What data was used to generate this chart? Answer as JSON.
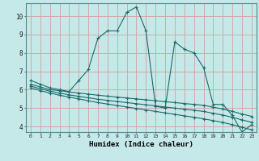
{
  "xlabel": "Humidex (Indice chaleur)",
  "bg_color": "#c5e8e8",
  "grid_color": "#d4a0a0",
  "line_color": "#1a6b6b",
  "axis_color": "#4a8a8a",
  "xlim": [
    -0.5,
    23.5
  ],
  "ylim": [
    3.7,
    10.7
  ],
  "yticks": [
    4,
    5,
    6,
    7,
    8,
    9,
    10
  ],
  "xticks": [
    0,
    1,
    2,
    3,
    4,
    5,
    6,
    7,
    8,
    9,
    10,
    11,
    12,
    13,
    14,
    15,
    16,
    17,
    18,
    19,
    20,
    21,
    22,
    23
  ],
  "series1_x": [
    0,
    1,
    2,
    3,
    4,
    5,
    6,
    7,
    8,
    9,
    10,
    11,
    12,
    13,
    14,
    15,
    16,
    17,
    18,
    19,
    20,
    21,
    22,
    23
  ],
  "series1_y": [
    6.5,
    6.3,
    6.1,
    6.0,
    5.9,
    6.5,
    7.1,
    8.8,
    9.2,
    9.2,
    10.2,
    10.5,
    9.2,
    5.1,
    5.0,
    8.6,
    8.2,
    8.0,
    7.2,
    5.2,
    5.2,
    4.6,
    3.7,
    4.1
  ],
  "series2_x": [
    0,
    1,
    2,
    3,
    4,
    5,
    6,
    7,
    8,
    9,
    10,
    11,
    12,
    13,
    14,
    15,
    16,
    17,
    18,
    19,
    20,
    21,
    22,
    23
  ],
  "series2_y": [
    6.3,
    6.15,
    6.0,
    5.95,
    5.88,
    5.82,
    5.76,
    5.7,
    5.65,
    5.6,
    5.55,
    5.5,
    5.45,
    5.4,
    5.35,
    5.3,
    5.25,
    5.2,
    5.15,
    5.05,
    4.95,
    4.82,
    4.68,
    4.55
  ],
  "series3_x": [
    0,
    1,
    2,
    3,
    4,
    5,
    6,
    7,
    8,
    9,
    10,
    11,
    12,
    13,
    14,
    15,
    16,
    17,
    18,
    19,
    20,
    21,
    22,
    23
  ],
  "series3_y": [
    6.2,
    6.05,
    5.92,
    5.82,
    5.72,
    5.64,
    5.56,
    5.48,
    5.42,
    5.36,
    5.3,
    5.24,
    5.18,
    5.12,
    5.06,
    5.0,
    4.94,
    4.88,
    4.82,
    4.72,
    4.62,
    4.5,
    4.36,
    4.23
  ],
  "series4_x": [
    0,
    1,
    2,
    3,
    4,
    5,
    6,
    7,
    8,
    9,
    10,
    11,
    12,
    13,
    14,
    15,
    16,
    17,
    18,
    19,
    20,
    21,
    22,
    23
  ],
  "series4_y": [
    6.1,
    5.95,
    5.82,
    5.7,
    5.6,
    5.5,
    5.4,
    5.3,
    5.22,
    5.14,
    5.06,
    4.98,
    4.9,
    4.82,
    4.74,
    4.66,
    4.58,
    4.5,
    4.42,
    4.32,
    4.22,
    4.1,
    3.96,
    3.82
  ]
}
